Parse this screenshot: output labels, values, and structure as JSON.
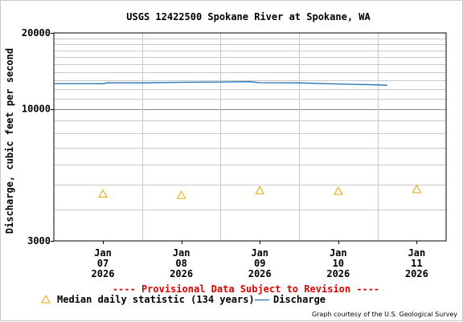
{
  "chart_data": {
    "type": "line",
    "title": "USGS 12422500 Spokane River at Spokane, WA",
    "ylabel": "Discharge, cubic feet per second",
    "xlabel": "",
    "y_scale": "log",
    "ylim": [
      3000,
      20000
    ],
    "y_ticks": [
      {
        "value": 3000,
        "label": "3000"
      },
      {
        "value": 10000,
        "label": "10000"
      },
      {
        "value": 20000,
        "label": "20000"
      }
    ],
    "xlim": [
      "2026-01-06T09:00",
      "2026-01-11T09:00"
    ],
    "x_ticks": [
      {
        "date": "2026-01-07",
        "month": "Jan",
        "day": "07",
        "year": "2026"
      },
      {
        "date": "2026-01-08",
        "month": "Jan",
        "day": "08",
        "year": "2026"
      },
      {
        "date": "2026-01-09",
        "month": "Jan",
        "day": "09",
        "year": "2026"
      },
      {
        "date": "2026-01-10",
        "month": "Jan",
        "day": "10",
        "year": "2026"
      },
      {
        "date": "2026-01-11",
        "month": "Jan",
        "day": "11",
        "year": "2026"
      }
    ],
    "grid": true,
    "series": [
      {
        "name": "Discharge",
        "color": "#1a6fb5",
        "style": "line",
        "points": [
          {
            "x": "2026-01-06T09:00",
            "y": 12600
          },
          {
            "x": "2026-01-06T21:00",
            "y": 12600
          },
          {
            "x": "2026-01-07T00:00",
            "y": 12580
          },
          {
            "x": "2026-01-07T01:30",
            "y": 12700
          },
          {
            "x": "2026-01-07T12:00",
            "y": 12680
          },
          {
            "x": "2026-01-08T00:00",
            "y": 12750
          },
          {
            "x": "2026-01-08T12:00",
            "y": 12780
          },
          {
            "x": "2026-01-08T21:00",
            "y": 12820
          },
          {
            "x": "2026-01-09T00:00",
            "y": 12700
          },
          {
            "x": "2026-01-09T12:00",
            "y": 12680
          },
          {
            "x": "2026-01-10T00:00",
            "y": 12550
          },
          {
            "x": "2026-01-10T12:00",
            "y": 12450
          },
          {
            "x": "2026-01-10T15:00",
            "y": 12400
          }
        ]
      },
      {
        "name": "Median daily statistic (134 years)",
        "color": "#e0a800",
        "style": "triangle",
        "points": [
          {
            "x": "2026-01-07T00:00",
            "y": 4600
          },
          {
            "x": "2026-01-08T00:00",
            "y": 4550
          },
          {
            "x": "2026-01-09T00:00",
            "y": 4750
          },
          {
            "x": "2026-01-10T00:00",
            "y": 4720
          },
          {
            "x": "2026-01-11T00:00",
            "y": 4800
          }
        ]
      }
    ],
    "legend": {
      "position": "bottom",
      "items": [
        {
          "symbol": "triangle",
          "label": "Median daily statistic (134 years)",
          "color": "#e0a800"
        },
        {
          "symbol": "line",
          "label": "Discharge",
          "color": "#1a6fb5"
        }
      ]
    },
    "annotation": "---- Provisional Data Subject to Revision ----",
    "credit": "Graph courtesy of the U.S. Geological Survey"
  }
}
